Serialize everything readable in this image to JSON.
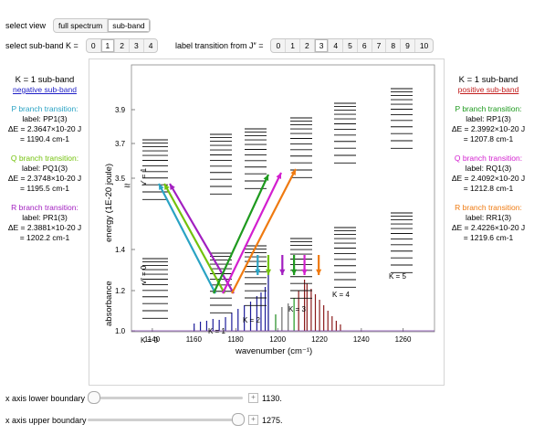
{
  "controls": {
    "view_label": "select view",
    "view_options": [
      "full spectrum",
      "sub-band"
    ],
    "view_selected": 1,
    "k_label": "select sub-band K =",
    "k_options": [
      "0",
      "1",
      "2",
      "3",
      "4"
    ],
    "k_selected": 1,
    "j_label": "label transition from J″ =",
    "j_options": [
      "0",
      "1",
      "2",
      "3",
      "4",
      "5",
      "6",
      "7",
      "8",
      "9",
      "10"
    ],
    "j_selected": 3
  },
  "left": {
    "heading": "K = 1 sub-band",
    "subheading": "negative sub-band",
    "subheading_color": "#1d1dc6",
    "p": {
      "title": "P branch transition:",
      "label": "label: PP1(3)",
      "de": "ΔE = 2.3647×10-20 J",
      "wn": "= 1190.4 cm-1",
      "color": "#2aa3c4"
    },
    "q": {
      "title": "Q branch transition:",
      "label": "label: PQ1(3)",
      "de": "ΔE = 2.3748×10-20 J",
      "wn": "= 1195.5 cm-1",
      "color": "#73c20c"
    },
    "r": {
      "title": "R branch transition:",
      "label": "label: PR1(3)",
      "de": "ΔE = 2.3881×10-20 J",
      "wn": "= 1202.2 cm-1",
      "color": "#a21fc0"
    }
  },
  "right": {
    "heading": "K = 1 sub-band",
    "subheading": "positive sub-band",
    "subheading_color": "#c21d1d",
    "p": {
      "title": "P branch transition:",
      "label": "label: RP1(3)",
      "de": "ΔE = 2.3992×10-20 J",
      "wn": "= 1207.8 cm-1",
      "color": "#1e9a1e"
    },
    "q": {
      "title": "Q branch transition:",
      "label": "label: RQ1(3)",
      "de": "ΔE = 2.4092×10-20 J",
      "wn": "= 1212.8 cm-1",
      "color": "#d31fcf"
    },
    "r": {
      "title": "R branch transition:",
      "label": "label: RR1(3)",
      "de": "ΔE = 2.4226×10-20 J",
      "wn": "= 1219.6 cm-1",
      "color": "#ef7a10"
    }
  },
  "plot": {
    "energy_axis_label": "energy (1E-20 joule)",
    "absorbance_axis_label": "absorbance",
    "x_axis_label": "wavenumber (cm⁻¹)",
    "x_ticks": [
      "1140",
      "1160",
      "1180",
      "1200",
      "1220",
      "1240",
      "1260"
    ],
    "y_ticks": [
      "3.9",
      "3.7",
      "3.5",
      "1.4",
      "1.2",
      "1.0"
    ],
    "k_tags": [
      "K = 0",
      "K = 1",
      "K = 2",
      "K = 3",
      "K = 4",
      "K = 5"
    ],
    "upper_label": "v′ = 1",
    "lower_label": "v″ = 0",
    "break_symbol": "≈"
  },
  "sliders": {
    "lower_label": "x axis lower boundary",
    "lower_value": "1130.",
    "lower_fraction": 0.0,
    "upper_label": "x axis upper boundary",
    "upper_value": "1275.",
    "upper_fraction": 1.0
  }
}
